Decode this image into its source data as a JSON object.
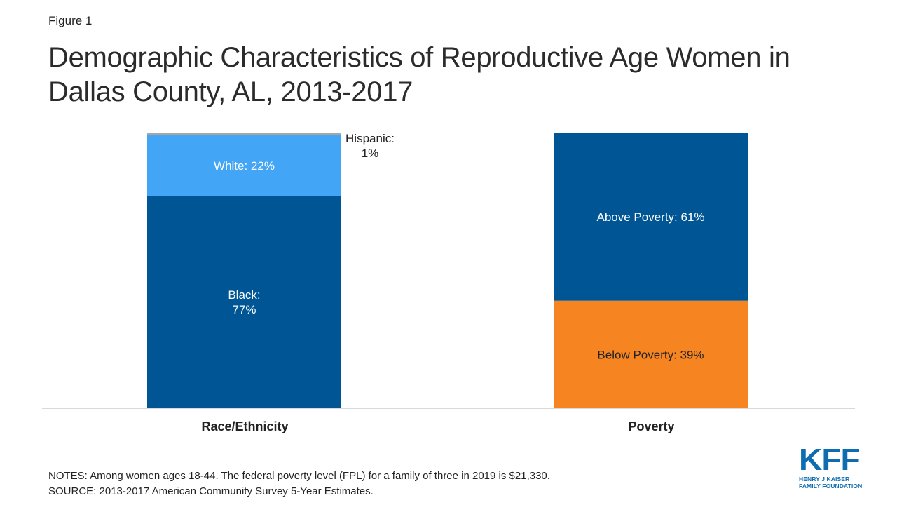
{
  "figure_label": "Figure 1",
  "title": "Demographic Characteristics of Reproductive Age Women in Dallas County, AL, 2013-2017",
  "colors": {
    "black": "#005695",
    "white": "#42a5f5",
    "hispanic": "#a6a6a6",
    "above_poverty": "#005695",
    "below_poverty": "#f68521",
    "axis": "#d9d9d9"
  },
  "chart_data": {
    "type": "bar",
    "stacked": true,
    "percent": true,
    "categories": [
      "Race/Ethnicity",
      "Poverty"
    ],
    "bars": [
      {
        "category": "Race/Ethnicity",
        "segments": [
          {
            "name": "Black",
            "value": 77,
            "label_lines": [
              "Black:",
              "77%"
            ],
            "color_key": "black"
          },
          {
            "name": "White",
            "value": 22,
            "label_lines": [
              "White: 22%"
            ],
            "color_key": "white"
          },
          {
            "name": "Hispanic",
            "value": 1,
            "label_lines": [
              "Hispanic:",
              "1%"
            ],
            "color_key": "hispanic",
            "label_outside": true
          }
        ]
      },
      {
        "category": "Poverty",
        "segments": [
          {
            "name": "Below Poverty",
            "value": 39,
            "label_lines": [
              "Below Poverty: 39%"
            ],
            "color_key": "below_poverty",
            "dark_text": true
          },
          {
            "name": "Above Poverty",
            "value": 61,
            "label_lines": [
              "Above Poverty: 61%"
            ],
            "color_key": "above_poverty"
          }
        ]
      }
    ],
    "ylim": [
      0,
      100
    ],
    "grid": false,
    "legend": "none"
  },
  "notes_line1": "NOTES: Among women ages 18-44. The federal poverty level (FPL) for a family of three in 2019 is $21,330.",
  "notes_line2": "SOURCE: 2013-2017 American Community Survey 5-Year Estimates.",
  "logo": {
    "mark": "KFF",
    "line1": "HENRY J KAISER",
    "line2": "FAMILY FOUNDATION"
  }
}
